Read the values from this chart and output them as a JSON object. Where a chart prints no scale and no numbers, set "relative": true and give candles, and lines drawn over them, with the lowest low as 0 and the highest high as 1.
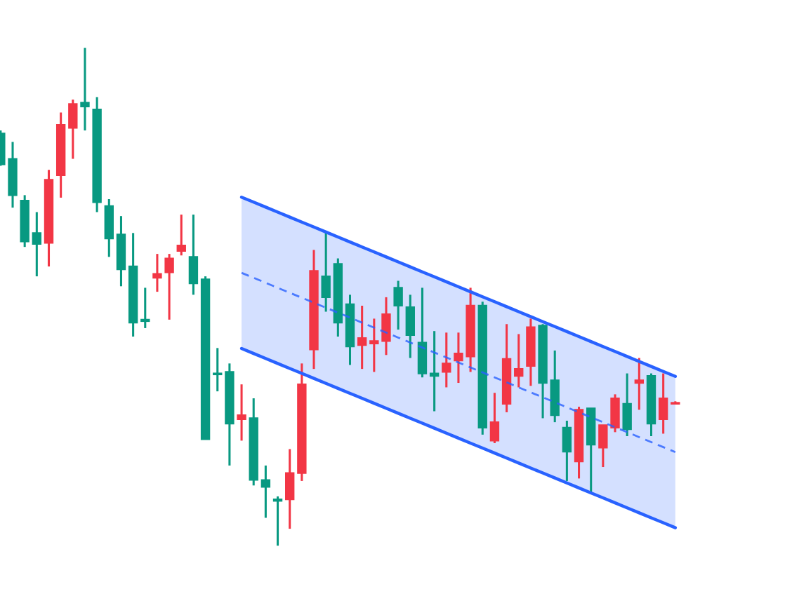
{
  "chart_data": {
    "type": "candlestick",
    "relative": true,
    "categories": [
      null,
      null,
      null,
      null,
      null,
      null,
      null,
      null,
      null,
      null,
      null,
      null,
      null,
      null,
      null,
      null,
      null,
      null,
      null,
      null,
      null,
      null,
      null,
      null,
      null,
      null,
      null,
      null,
      null,
      null,
      null,
      null,
      null,
      null,
      null,
      null,
      null,
      null,
      null,
      null,
      null,
      null,
      null,
      null,
      null,
      null,
      null,
      null,
      null,
      null,
      null,
      null,
      null,
      null,
      null,
      null,
      null
    ],
    "ohlc": [
      [
        0.828,
        0.834,
        0.763,
        0.766
      ],
      [
        0.777,
        0.811,
        0.679,
        0.704
      ],
      [
        0.693,
        0.704,
        0.6,
        0.611
      ],
      [
        0.628,
        0.67,
        0.541,
        0.606
      ],
      [
        0.608,
        0.755,
        0.561,
        0.735
      ],
      [
        0.744,
        0.87,
        0.699,
        0.845
      ],
      [
        0.839,
        0.896,
        0.777,
        0.887
      ],
      [
        0.89,
        1.0,
        0.834,
        0.882
      ],
      [
        0.876,
        0.901,
        0.67,
        0.69
      ],
      [
        0.682,
        0.696,
        0.58,
        0.617
      ],
      [
        0.625,
        0.662,
        0.521,
        0.555
      ],
      [
        0.561,
        0.628,
        0.42,
        0.448
      ],
      [
        0.454,
        0.518,
        0.437,
        0.451
      ],
      [
        0.538,
        0.586,
        0.51,
        0.546
      ],
      [
        0.549,
        0.586,
        0.454,
        0.577
      ],
      [
        0.592,
        0.665,
        0.583,
        0.603
      ],
      [
        0.58,
        0.665,
        0.504,
        0.527
      ],
      [
        0.535,
        0.541,
        0.214,
        0.214
      ],
      [
        0.346,
        0.397,
        0.31,
        0.344
      ],
      [
        0.349,
        0.366,
        0.161,
        0.245
      ],
      [
        0.254,
        0.324,
        0.211,
        0.262
      ],
      [
        0.256,
        0.296,
        0.121,
        0.132
      ],
      [
        0.132,
        0.161,
        0.056,
        0.118
      ],
      [
        0.093,
        0.099,
        0.0,
        0.09
      ],
      [
        0.093,
        0.194,
        0.034,
        0.146
      ],
      [
        0.146,
        0.366,
        0.13,
        0.324
      ],
      [
        0.394,
        0.594,
        0.355,
        0.552
      ],
      [
        0.541,
        0.631,
        0.47,
        0.499
      ],
      [
        0.566,
        0.577,
        0.42,
        0.448
      ],
      [
        0.485,
        0.504,
        0.363,
        0.4
      ],
      [
        0.403,
        0.482,
        0.355,
        0.417
      ],
      [
        0.406,
        0.456,
        0.349,
        0.411
      ],
      [
        0.411,
        0.499,
        0.383,
        0.465
      ],
      [
        0.518,
        0.532,
        0.434,
        0.482
      ],
      [
        0.479,
        0.504,
        0.377,
        0.423
      ],
      [
        0.408,
        0.518,
        0.338,
        0.346
      ],
      [
        0.346,
        0.431,
        0.27,
        0.341
      ],
      [
        0.349,
        0.428,
        0.318,
        0.366
      ],
      [
        0.372,
        0.428,
        0.327,
        0.386
      ],
      [
        0.38,
        0.518,
        0.349,
        0.482
      ],
      [
        0.482,
        0.49,
        0.223,
        0.237
      ],
      [
        0.211,
        0.307,
        0.206,
        0.248
      ],
      [
        0.285,
        0.445,
        0.268,
        0.375
      ],
      [
        0.341,
        0.425,
        0.318,
        0.355
      ],
      [
        0.361,
        0.456,
        0.321,
        0.439
      ],
      [
        0.442,
        0.445,
        0.256,
        0.327
      ],
      [
        0.332,
        0.392,
        0.248,
        0.262
      ],
      [
        0.237,
        0.251,
        0.13,
        0.189
      ],
      [
        0.169,
        0.279,
        0.135,
        0.273
      ],
      [
        0.276,
        0.276,
        0.107,
        0.203
      ],
      [
        0.197,
        0.242,
        0.158,
        0.242
      ],
      [
        0.237,
        0.304,
        0.228,
        0.296
      ],
      [
        0.285,
        0.346,
        0.22,
        0.234
      ],
      [
        0.327,
        0.377,
        0.273,
        0.332
      ],
      [
        0.341,
        0.346,
        0.22,
        0.245
      ],
      [
        0.254,
        0.346,
        0.225,
        0.296
      ],
      [
        0.285,
        0.29,
        0.285,
        0.287
      ]
    ],
    "colors": [
      "#089981",
      "#089981",
      "#089981",
      "#089981",
      "#f23645",
      "#f23645",
      "#f23645",
      "#089981",
      "#089981",
      "#089981",
      "#089981",
      "#089981",
      "#089981",
      "#f23645",
      "#f23645",
      "#f23645",
      "#089981",
      "#089981",
      "#089981",
      "#089981",
      "#f23645",
      "#089981",
      "#089981",
      "#089981",
      "#f23645",
      "#f23645",
      "#f23645",
      "#089981",
      "#089981",
      "#089981",
      "#f23645",
      "#f23645",
      "#f23645",
      "#089981",
      "#089981",
      "#089981",
      "#089981",
      "#f23645",
      "#f23645",
      "#f23645",
      "#089981",
      "#f23645",
      "#f23645",
      "#f23645",
      "#f23645",
      "#089981",
      "#089981",
      "#089981",
      "#f23645",
      "#089981",
      "#f23645",
      "#f23645",
      "#089981",
      "#f23645",
      "#089981",
      "#f23645",
      "#f23645"
    ],
    "series": [
      {
        "type": "line",
        "color": "#2962ff",
        "line_style": "solid",
        "values": [
          null,
          null,
          null,
          null,
          null,
          null,
          null,
          null,
          null,
          null,
          null,
          null,
          null,
          null,
          null,
          null,
          null,
          null,
          null,
          null,
          0.7,
          0.69,
          0.68,
          0.67,
          0.66,
          0.65,
          0.64,
          0.63,
          0.62,
          0.61,
          0.6,
          0.59,
          0.58,
          0.57,
          0.56,
          0.55,
          0.54,
          0.53,
          0.52,
          0.51,
          0.5,
          0.49,
          0.48,
          0.47,
          0.46,
          0.45,
          0.44,
          0.43,
          0.42,
          0.41,
          0.4,
          0.39,
          0.38,
          0.37,
          0.36,
          0.35,
          0.34
        ]
      },
      {
        "type": "line",
        "color": "#2962ff",
        "line_style": "solid",
        "values": [
          null,
          null,
          null,
          null,
          null,
          null,
          null,
          null,
          null,
          null,
          null,
          null,
          null,
          null,
          null,
          null,
          null,
          null,
          null,
          null,
          0.396,
          0.386,
          0.376,
          0.366,
          0.356,
          0.346,
          0.336,
          0.326,
          0.316,
          0.306,
          0.296,
          0.286,
          0.276,
          0.266,
          0.256,
          0.246,
          0.236,
          0.226,
          0.216,
          0.206,
          0.196,
          0.186,
          0.176,
          0.166,
          0.156,
          0.146,
          0.136,
          0.126,
          0.116,
          0.106,
          0.096,
          0.086,
          0.076,
          0.066,
          0.056,
          0.046,
          0.036
        ]
      },
      {
        "type": "line",
        "color": "#2962ff",
        "line_style": "dashed",
        "values": [
          null,
          null,
          null,
          null,
          null,
          null,
          null,
          null,
          null,
          null,
          null,
          null,
          null,
          null,
          null,
          null,
          null,
          null,
          null,
          null,
          0.548,
          0.538,
          0.528,
          0.518,
          0.508,
          0.498,
          0.488,
          0.478,
          0.468,
          0.458,
          0.448,
          0.438,
          0.428,
          0.418,
          0.408,
          0.398,
          0.388,
          0.378,
          0.368,
          0.358,
          0.348,
          0.338,
          0.328,
          0.318,
          0.308,
          0.298,
          0.288,
          0.278,
          0.268,
          0.258,
          0.248,
          0.238,
          0.228,
          0.218,
          0.208,
          0.198,
          0.188
        ],
        "upper": [
          null,
          null,
          null,
          null,
          null,
          null,
          null,
          null,
          null,
          null,
          null,
          null,
          null,
          null,
          null,
          null,
          null,
          null,
          null,
          null,
          0.7,
          0.69,
          0.68,
          0.67,
          0.66,
          0.65,
          0.64,
          0.63,
          0.62,
          0.61,
          0.6,
          0.59,
          0.58,
          0.57,
          0.56,
          0.55,
          0.54,
          0.53,
          0.52,
          0.51,
          0.5,
          0.49,
          0.48,
          0.47,
          0.46,
          0.45,
          0.44,
          0.43,
          0.42,
          0.41,
          0.4,
          0.39,
          0.38,
          0.37,
          0.36,
          0.35,
          0.34
        ],
        "lower": [
          null,
          null,
          null,
          null,
          null,
          null,
          null,
          null,
          null,
          null,
          null,
          null,
          null,
          null,
          null,
          null,
          null,
          null,
          null,
          null,
          0.396,
          0.386,
          0.376,
          0.366,
          0.356,
          0.346,
          0.336,
          0.326,
          0.316,
          0.306,
          0.296,
          0.286,
          0.276,
          0.266,
          0.256,
          0.246,
          0.236,
          0.226,
          0.216,
          0.206,
          0.196,
          0.186,
          0.176,
          0.166,
          0.156,
          0.146,
          0.136,
          0.126,
          0.116,
          0.106,
          0.096,
          0.086,
          0.076,
          0.066,
          0.056,
          0.046,
          0.036
        ]
      }
    ]
  }
}
